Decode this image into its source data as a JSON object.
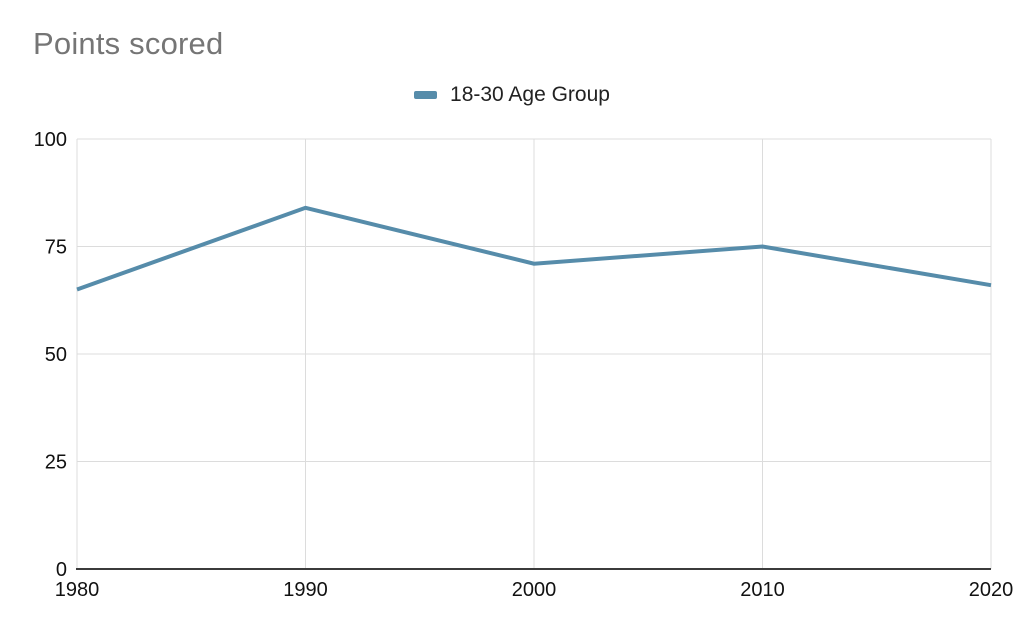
{
  "title": "Points scored",
  "legend": {
    "label": "18-30 Age Group"
  },
  "colors": {
    "series": "#568caa",
    "grid": "#dcdcdc",
    "axis_baseline": "#3b3b3b",
    "title": "#757575",
    "tick_label": "#111111",
    "legend_label": "#222222"
  },
  "chart_data": {
    "type": "line",
    "title": "Points scored",
    "x": [
      1980,
      1990,
      2000,
      2010,
      2020
    ],
    "categories": [
      "1980",
      "1990",
      "2000",
      "2010",
      "2020"
    ],
    "series": [
      {
        "name": "18-30 Age Group",
        "values": [
          65,
          84,
          71,
          75,
          66
        ],
        "color": "#568caa"
      }
    ],
    "xlabel": "",
    "ylabel": "",
    "ylim": [
      0,
      100
    ],
    "yticks": [
      0,
      25,
      50,
      75,
      100
    ],
    "grid": true,
    "legend_position": "top-center",
    "line_width": 4
  }
}
